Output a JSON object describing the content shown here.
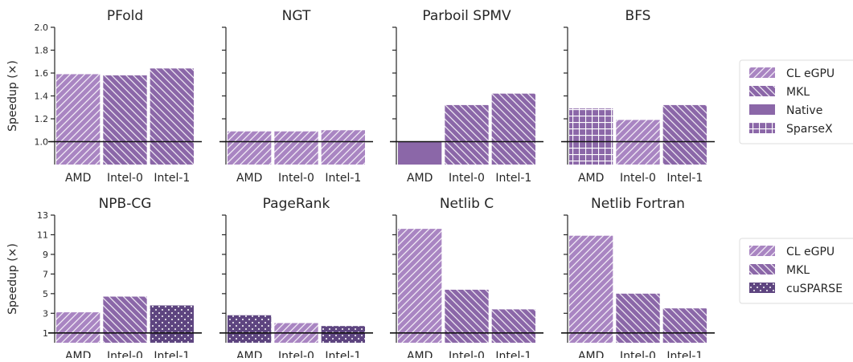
{
  "colors": {
    "light_purple": "#a985c2",
    "mid_purple": "#8b67a8",
    "dark_purple": "#5e4580",
    "axis": "#262626"
  },
  "chart_data": [
    {
      "type": "bar",
      "title": "PFold",
      "ylabel": "Speedup (×)",
      "categories": [
        "AMD",
        "Intel-0",
        "Intel-1"
      ],
      "values": [
        1.59,
        1.58,
        1.64
      ],
      "series_per_bar": [
        "CL eGPU",
        "MKL",
        "MKL"
      ],
      "ylim": [
        0.8,
        2.0
      ],
      "yticks": [
        1.0,
        1.2,
        1.4,
        1.6,
        1.8,
        2.0
      ],
      "ytick_labels": [
        "1.0",
        "1.2",
        "1.4",
        "1.6",
        "1.8",
        "2.0"
      ],
      "baseline": 1.0,
      "show_ytick_labels": true
    },
    {
      "type": "bar",
      "title": "NGT",
      "ylabel": "",
      "categories": [
        "AMD",
        "Intel-0",
        "Intel-1"
      ],
      "values": [
        1.09,
        1.09,
        1.1
      ],
      "series_per_bar": [
        "CL eGPU",
        "CL eGPU",
        "CL eGPU"
      ],
      "ylim": [
        0.8,
        2.0
      ],
      "yticks": [
        1.0,
        1.2,
        1.4,
        1.6,
        1.8,
        2.0
      ],
      "baseline": 1.0,
      "show_ytick_labels": false
    },
    {
      "type": "bar",
      "title": "Parboil SPMV",
      "ylabel": "",
      "categories": [
        "AMD",
        "Intel-0",
        "Intel-1"
      ],
      "values": [
        1.0,
        1.32,
        1.42
      ],
      "series_per_bar": [
        "Native",
        "MKL",
        "MKL"
      ],
      "ylim": [
        0.8,
        2.0
      ],
      "yticks": [
        1.0,
        1.2,
        1.4,
        1.6,
        1.8,
        2.0
      ],
      "baseline": 1.0,
      "show_ytick_labels": false
    },
    {
      "type": "bar",
      "title": "BFS",
      "ylabel": "",
      "categories": [
        "AMD",
        "Intel-0",
        "Intel-1"
      ],
      "values": [
        1.29,
        1.19,
        1.32
      ],
      "series_per_bar": [
        "SparseX",
        "CL eGPU",
        "MKL"
      ],
      "ylim": [
        0.8,
        2.0
      ],
      "yticks": [
        1.0,
        1.2,
        1.4,
        1.6,
        1.8,
        2.0
      ],
      "baseline": 1.0,
      "show_ytick_labels": false
    },
    {
      "type": "bar",
      "title": "NPB-CG",
      "ylabel": "Speedup (×)",
      "categories": [
        "AMD",
        "Intel-0",
        "Intel-1"
      ],
      "values": [
        3.1,
        4.7,
        3.8
      ],
      "series_per_bar": [
        "CL eGPU",
        "MKL",
        "cuSPARSE"
      ],
      "ylim": [
        0,
        13
      ],
      "yticks": [
        1,
        3,
        5,
        7,
        9,
        11,
        13
      ],
      "ytick_labels": [
        "1",
        "3",
        "5",
        "7",
        "9",
        "11",
        "13"
      ],
      "baseline": 1.0,
      "show_ytick_labels": true
    },
    {
      "type": "bar",
      "title": "PageRank",
      "ylabel": "",
      "categories": [
        "AMD",
        "Intel-0",
        "Intel-1"
      ],
      "values": [
        2.8,
        2.0,
        1.7
      ],
      "series_per_bar": [
        "cuSPARSE",
        "CL eGPU",
        "cuSPARSE"
      ],
      "ylim": [
        0,
        13
      ],
      "yticks": [
        1,
        3,
        5,
        7,
        9,
        11,
        13
      ],
      "baseline": 1.0,
      "show_ytick_labels": false
    },
    {
      "type": "bar",
      "title": "Netlib C",
      "ylabel": "",
      "categories": [
        "AMD",
        "Intel-0",
        "Intel-1"
      ],
      "values": [
        11.6,
        5.4,
        3.4
      ],
      "series_per_bar": [
        "CL eGPU",
        "MKL",
        "MKL"
      ],
      "ylim": [
        0,
        13
      ],
      "yticks": [
        1,
        3,
        5,
        7,
        9,
        11,
        13
      ],
      "baseline": 1.0,
      "show_ytick_labels": false
    },
    {
      "type": "bar",
      "title": "Netlib Fortran",
      "ylabel": "",
      "categories": [
        "AMD",
        "Intel-0",
        "Intel-1"
      ],
      "values": [
        10.9,
        5.0,
        3.5
      ],
      "series_per_bar": [
        "CL eGPU",
        "MKL",
        "MKL"
      ],
      "ylim": [
        0,
        13
      ],
      "yticks": [
        1,
        3,
        5,
        7,
        9,
        11,
        13
      ],
      "baseline": 1.0,
      "show_ytick_labels": false
    }
  ],
  "legends": [
    {
      "placement": "right of top row",
      "entries": [
        "CL eGPU",
        "MKL",
        "Native",
        "SparseX"
      ]
    },
    {
      "placement": "right of bottom row",
      "entries": [
        "CL eGPU",
        "MKL",
        "cuSPARSE"
      ]
    }
  ],
  "series_styles": {
    "CL eGPU": {
      "color": "#a985c2",
      "pattern": "diagonal-up"
    },
    "MKL": {
      "color": "#8b67a8",
      "pattern": "diagonal-down"
    },
    "Native": {
      "color": "#8b67a8",
      "pattern": "none"
    },
    "SparseX": {
      "color": "#8b67a8",
      "pattern": "grid"
    },
    "cuSPARSE": {
      "color": "#5e4580",
      "pattern": "dots"
    }
  }
}
